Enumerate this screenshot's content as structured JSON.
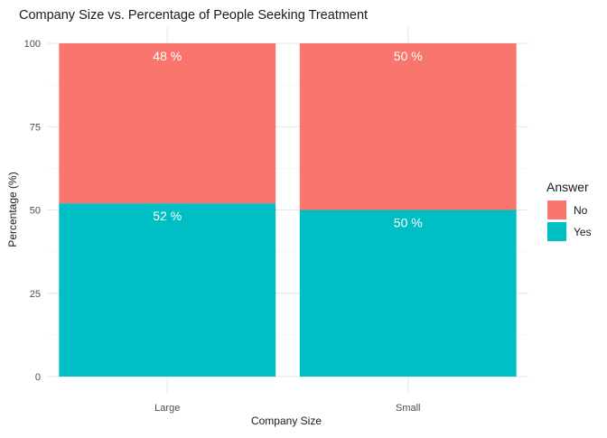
{
  "chart_data": {
    "type": "bar",
    "stacked": true,
    "title": "Company Size vs. Percentage of People Seeking Treatment",
    "xlabel": "Company Size",
    "ylabel": "Percentage (%)",
    "categories": [
      "Large",
      "Small"
    ],
    "ylim": [
      0,
      100
    ],
    "yticks": [
      0,
      25,
      50,
      75,
      100
    ],
    "ytick_labels": [
      "0",
      "25",
      "50",
      "75",
      "100"
    ],
    "grid": true,
    "legend_position": "right",
    "legend_title": "Answer",
    "series": [
      {
        "name": "Yes",
        "values": [
          52,
          50
        ],
        "labels": [
          "52 %",
          "50 %"
        ],
        "color": "#00BFC4"
      },
      {
        "name": "No",
        "values": [
          48,
          50
        ],
        "labels": [
          "48 %",
          "50 %"
        ],
        "color": "#F8766D"
      }
    ],
    "legend_order": [
      "No",
      "Yes"
    ]
  }
}
